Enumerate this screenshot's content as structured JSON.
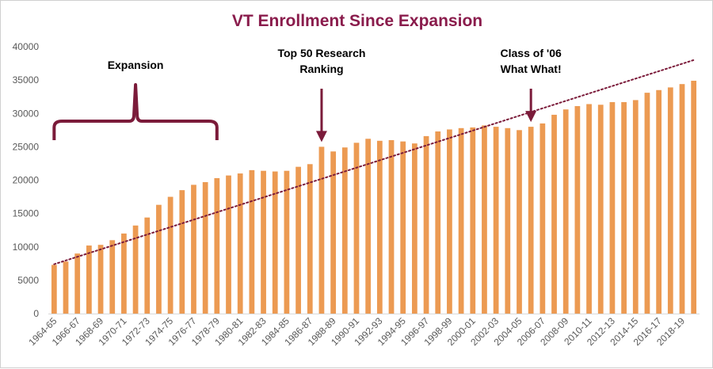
{
  "chart_data": {
    "type": "bar",
    "title": "VT Enrollment Since Expansion",
    "xlabel": "",
    "ylabel": "",
    "ylim": [
      0,
      40000
    ],
    "yticks": [
      "0",
      "5000",
      "10000",
      "15000",
      "20000",
      "25000",
      "30000",
      "35000",
      "40000"
    ],
    "grid": false,
    "legend": "none",
    "trendline": {
      "type": "linear",
      "style": "dotted",
      "color": "#7b1b3a",
      "start": 7400,
      "end": 38000
    },
    "categories": [
      "1964-65",
      "1965-66",
      "1966-67",
      "1967-68",
      "1968-69",
      "1969-70",
      "1970-71",
      "1971-72",
      "1972-73",
      "1973-74",
      "1974-75",
      "1975-76",
      "1976-77",
      "1977-78",
      "1978-79",
      "1979-80",
      "1980-81",
      "1981-82",
      "1982-83",
      "1983-84",
      "1984-85",
      "1985-86",
      "1986-87",
      "1987-88",
      "1988-89",
      "1989-90",
      "1990-91",
      "1991-92",
      "1992-93",
      "1993-94",
      "1994-95",
      "1995-96",
      "1996-97",
      "1997-98",
      "1998-99",
      "1999-00",
      "2000-01",
      "2001-02",
      "2002-03",
      "2003-04",
      "2004-05",
      "2005-06",
      "2006-07",
      "2007-08",
      "2008-09",
      "2009-10",
      "2010-11",
      "2011-12",
      "2012-13",
      "2013-14",
      "2014-15",
      "2015-16",
      "2016-17",
      "2017-18",
      "2018-19",
      "2019-20"
    ],
    "xtick_labels": [
      "1964-65",
      "1966-67",
      "1968-69",
      "1970-71",
      "1972-73",
      "1974-75",
      "1976-77",
      "1978-79",
      "1980-81",
      "1982-83",
      "1984-85",
      "1986-87",
      "1988-89",
      "1990-91",
      "1992-93",
      "1994-95",
      "1996-97",
      "1998-99",
      "2000-01",
      "2002-03",
      "2004-05",
      "2006-07",
      "2008-09",
      "2010-11",
      "2012-13",
      "2014-15",
      "2016-17",
      "2018-19"
    ],
    "values": [
      7300,
      7800,
      9000,
      10200,
      10300,
      11000,
      12000,
      13200,
      14400,
      16300,
      17500,
      18500,
      19300,
      19700,
      20300,
      20700,
      21000,
      21500,
      21400,
      21300,
      21400,
      22000,
      22400,
      25000,
      24300,
      24900,
      25600,
      26200,
      25900,
      26000,
      25800,
      25500,
      26600,
      27300,
      27600,
      27800,
      27900,
      28200,
      28000,
      27800,
      27500,
      28000,
      28500,
      29800,
      30600,
      31100,
      31400,
      31300,
      31700,
      31700,
      32000,
      33100,
      33500,
      33900,
      34400,
      34900
    ],
    "colors": {
      "bar": "#ec9a52",
      "trend": "#7b1b3a",
      "title": "#8a1c4c",
      "annotation": "#7b1b3a"
    },
    "annotations": [
      {
        "text_lines": [
          "Expansion"
        ],
        "marker": "brace",
        "from": "1964-65",
        "to": "1978-79"
      },
      {
        "text_lines": [
          "Top 50 Research",
          "Ranking"
        ],
        "marker": "arrow",
        "target": "1987-88"
      },
      {
        "text_lines": [
          "Class of '06",
          "What What!"
        ],
        "marker": "arrow",
        "target": "2005-06"
      }
    ]
  }
}
